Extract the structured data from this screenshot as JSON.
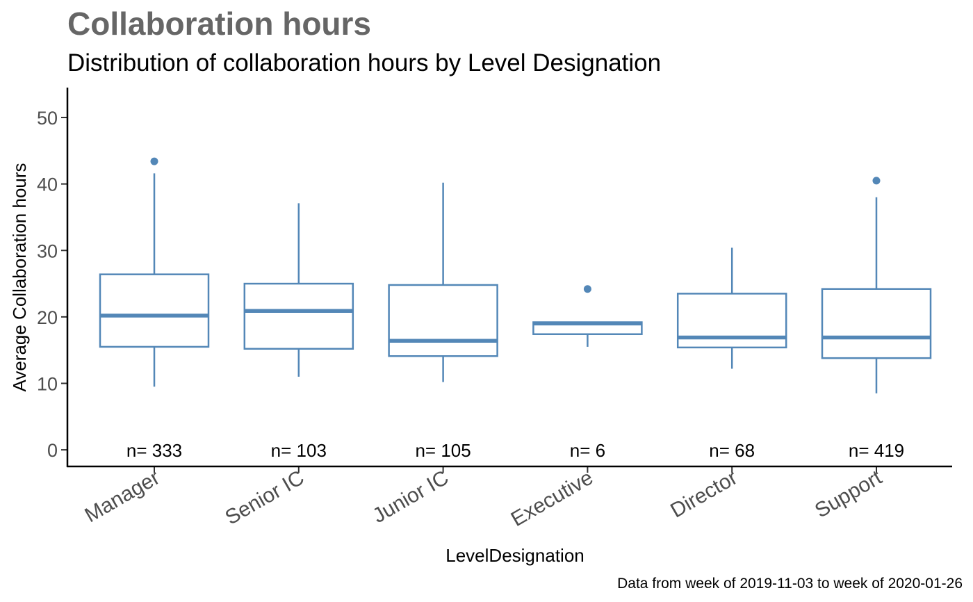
{
  "chart_data": {
    "type": "boxplot",
    "title": "Collaboration hours",
    "subtitle": "Distribution of collaboration hours by Level Designation",
    "xlabel": "LevelDesignation",
    "ylabel": "Average Collaboration hours",
    "caption": "Data from week of 2019-11-03 to week of 2020-01-26",
    "ylim": [
      -2.5,
      54.5
    ],
    "yticks": [
      0,
      10,
      20,
      30,
      40,
      50
    ],
    "grid": false,
    "color": "#5387b7",
    "categories": [
      "Manager",
      "Senior IC",
      "Junior IC",
      "Executive",
      "Director",
      "Support"
    ],
    "series": [
      {
        "category": "Manager",
        "n_label": "n= 333",
        "whisker_low": 9.5,
        "q1": 15.5,
        "median": 20.2,
        "q3": 26.4,
        "whisker_high": 41.6,
        "outliers": [
          43.4
        ]
      },
      {
        "category": "Senior IC",
        "n_label": "n= 103",
        "whisker_low": 11.0,
        "q1": 15.2,
        "median": 20.9,
        "q3": 25.0,
        "whisker_high": 37.1,
        "outliers": []
      },
      {
        "category": "Junior IC",
        "n_label": "n= 105",
        "whisker_low": 10.2,
        "q1": 14.1,
        "median": 16.4,
        "q3": 24.8,
        "whisker_high": 40.2,
        "outliers": []
      },
      {
        "category": "Executive",
        "n_label": "n= 6",
        "whisker_low": 15.5,
        "q1": 17.4,
        "median": 19.0,
        "q3": 19.2,
        "whisker_high": 19.2,
        "outliers": [
          24.2
        ]
      },
      {
        "category": "Director",
        "n_label": "n= 68",
        "whisker_low": 12.2,
        "q1": 15.4,
        "median": 16.9,
        "q3": 23.5,
        "whisker_high": 30.4,
        "outliers": []
      },
      {
        "category": "Support",
        "n_label": "n= 419",
        "whisker_low": 8.5,
        "q1": 13.8,
        "median": 16.9,
        "q3": 24.2,
        "whisker_high": 38.0,
        "outliers": [
          40.5
        ]
      }
    ]
  }
}
